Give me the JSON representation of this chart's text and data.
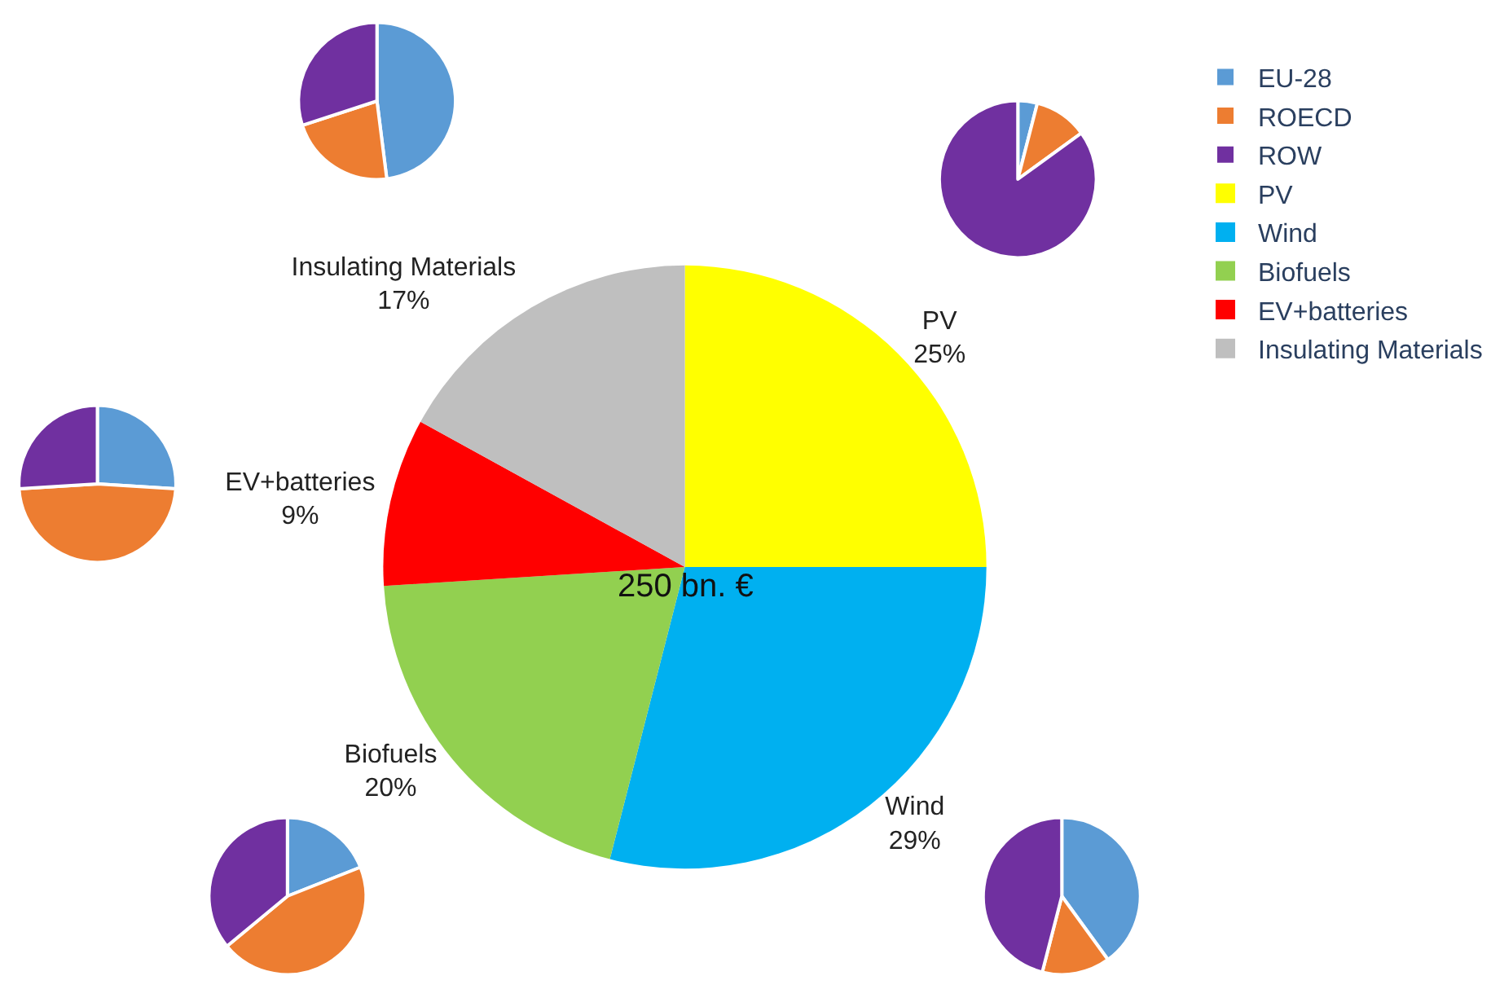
{
  "chart_data": [
    {
      "type": "pie",
      "categories": [
        "PV",
        "Wind",
        "Biofuels",
        "EV+batteries",
        "Insulating Materials"
      ],
      "values": [
        25,
        29,
        20,
        9,
        17
      ],
      "colors": [
        "#ffff00",
        "#00b0f0",
        "#92d050",
        "#ff0000",
        "#bfbfbf"
      ],
      "value_labels": [
        "25%",
        "29%",
        "20%",
        "9%",
        "17%"
      ],
      "annotations": [
        "250 bn. €"
      ],
      "legend": "right"
    },
    {
      "type": "pie",
      "categories": [
        "EU-28",
        "ROECD",
        "ROW"
      ],
      "values": [
        48,
        22,
        30
      ],
      "colors": [
        "#5b9bd5",
        "#ed7d31",
        "#7030a0"
      ],
      "legend": "right"
    },
    {
      "type": "pie",
      "categories": [
        null,
        null,
        null
      ],
      "values": [
        4,
        11,
        85
      ],
      "colors": [
        "#5b9bd5",
        "#ed7d31",
        "#7030a0"
      ]
    },
    {
      "type": "pie",
      "categories": [
        null,
        null,
        null
      ],
      "values": [
        26,
        48,
        26
      ],
      "colors": [
        "#5b9bd5",
        "#ed7d31",
        "#7030a0"
      ]
    },
    {
      "type": "pie",
      "categories": [
        null,
        null,
        null
      ],
      "values": [
        19,
        45,
        36
      ],
      "colors": [
        "#5b9bd5",
        "#ed7d31",
        "#7030a0"
      ]
    },
    {
      "type": "pie",
      "categories": [
        null,
        null,
        null
      ],
      "values": [
        40,
        14,
        46
      ],
      "colors": [
        "#5b9bd5",
        "#ed7d31",
        "#7030a0"
      ]
    }
  ]
}
